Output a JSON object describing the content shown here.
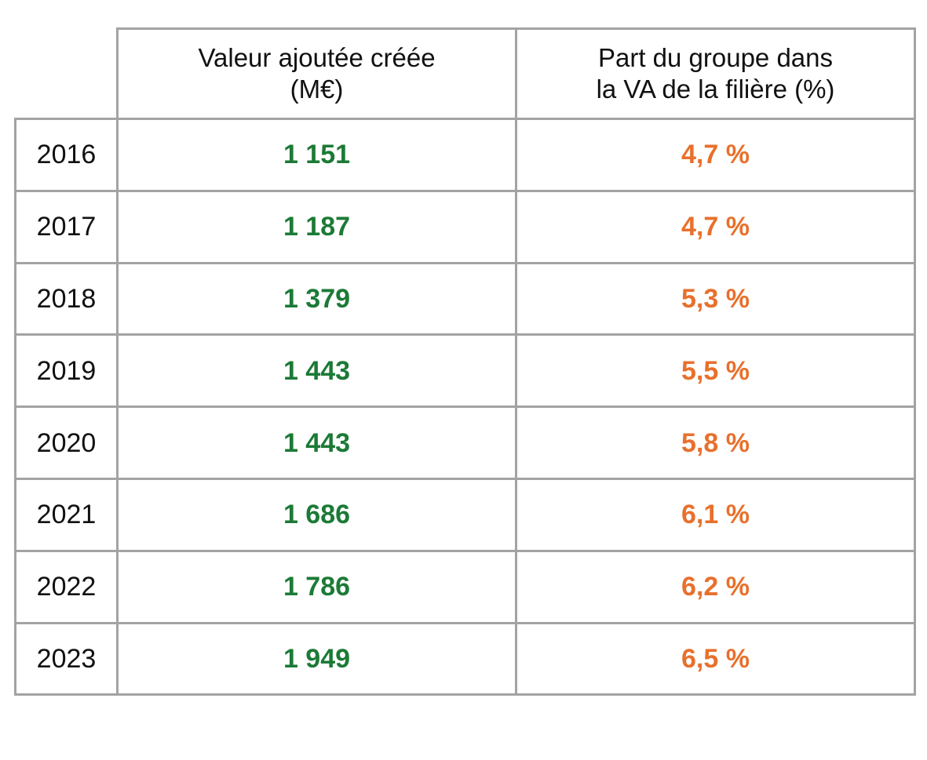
{
  "table": {
    "header": [
      [
        "Valeur ajoutée créée",
        "(M€)"
      ],
      [
        "Part du groupe dans",
        "la VA de la filière  (%)"
      ]
    ],
    "rows": [
      [
        "2016",
        "1 151",
        "4,7 %"
      ],
      [
        "2017",
        "1 187",
        "4,7 %"
      ],
      [
        "2018",
        "1 379",
        "5,3 %"
      ],
      [
        "2019",
        "1 443",
        "5,5 %"
      ],
      [
        "2020",
        "1 443",
        "5,8 %"
      ],
      [
        "2021",
        "1 686",
        "6,1 %"
      ],
      [
        "2022",
        "1 786",
        "6,2 %"
      ],
      [
        "2023",
        "1 949",
        "6,5 %"
      ]
    ]
  }
}
